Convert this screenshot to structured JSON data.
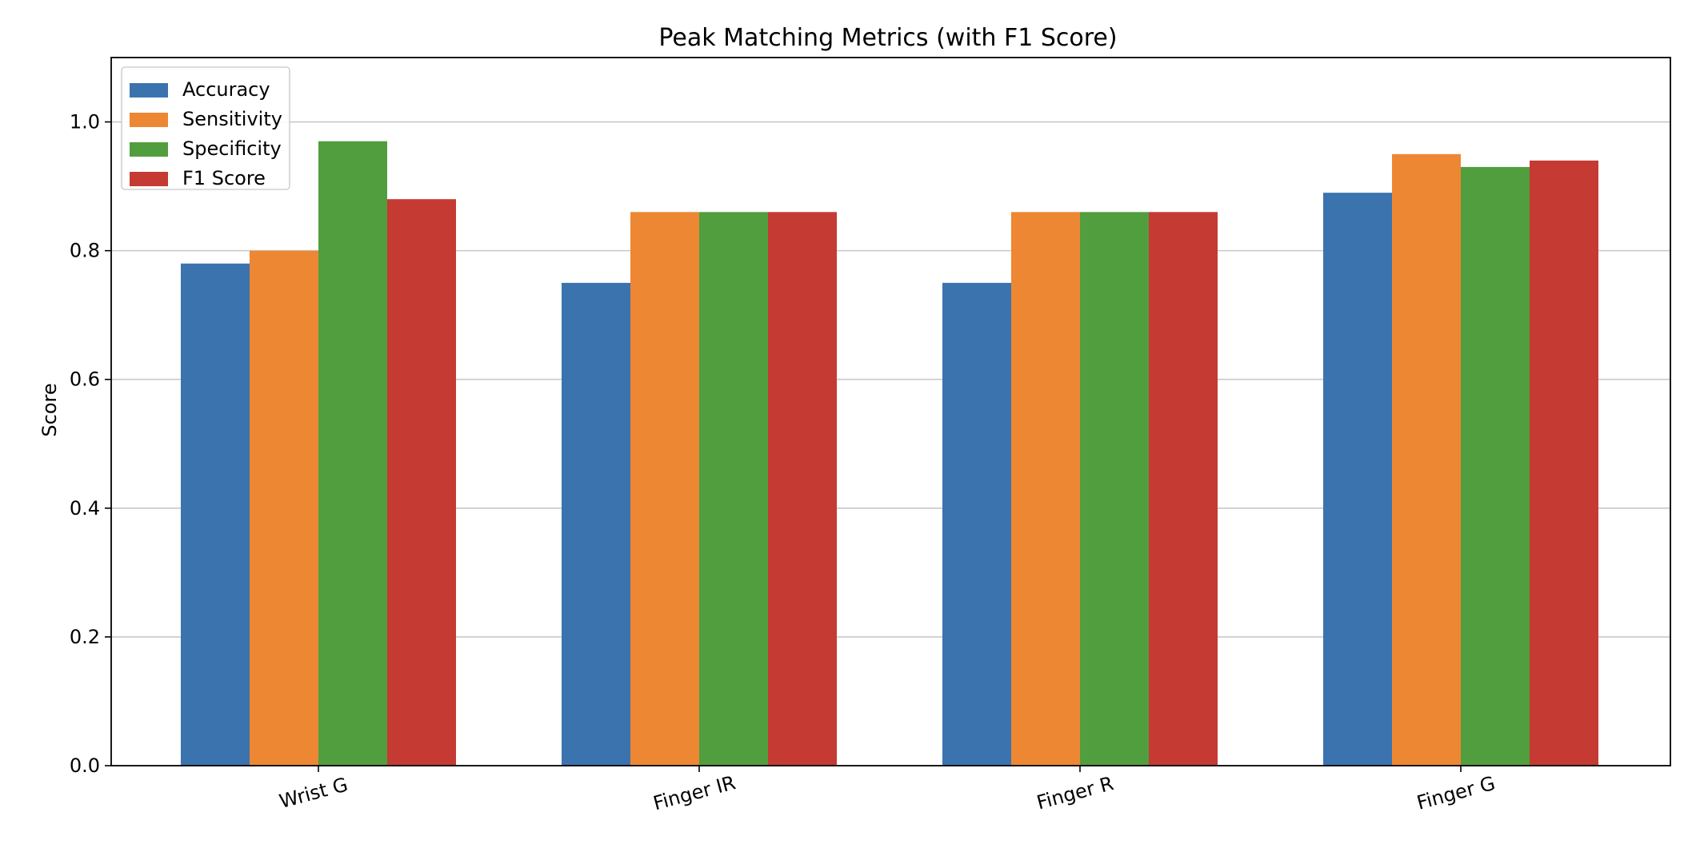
{
  "chart_data": {
    "type": "bar",
    "title": "Peak Matching Metrics (with F1 Score)",
    "xlabel": "",
    "ylabel": "Score",
    "categories": [
      "Wrist G",
      "Finger IR",
      "Finger R",
      "Finger G"
    ],
    "series": [
      {
        "name": "Accuracy",
        "color": "#3b73af",
        "values": [
          0.78,
          0.75,
          0.75,
          0.89
        ]
      },
      {
        "name": "Sensitivity",
        "color": "#ee8733",
        "values": [
          0.8,
          0.86,
          0.86,
          0.95
        ]
      },
      {
        "name": "Specificity",
        "color": "#519e3e",
        "values": [
          0.97,
          0.86,
          0.86,
          0.93
        ]
      },
      {
        "name": "F1 Score",
        "color": "#c53a32",
        "values": [
          0.88,
          0.86,
          0.86,
          0.94
        ]
      }
    ],
    "ylim": [
      0,
      1.1
    ],
    "yticks": [
      0.0,
      0.2,
      0.4,
      0.6,
      0.8,
      1.0
    ],
    "ytick_labels": [
      "0.0",
      "0.2",
      "0.4",
      "0.6",
      "0.8",
      "1.0"
    ],
    "grid": "y",
    "legend_position": "top-left",
    "xtick_rotation": "slight"
  }
}
